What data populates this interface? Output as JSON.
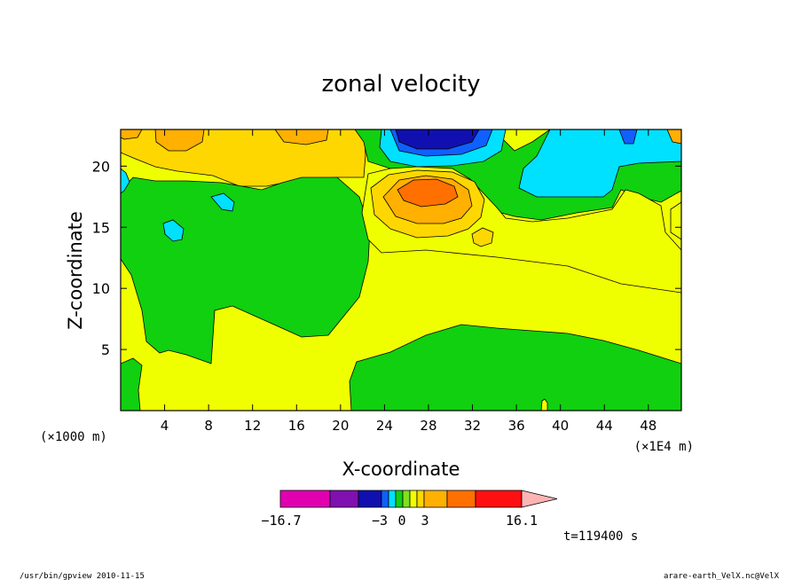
{
  "chart_data": {
    "type": "heatmap",
    "title": "zonal velocity",
    "xlabel": "X-coordinate",
    "ylabel": "Z-coordinate",
    "x_unit_left": "(×1000 m)",
    "x_unit_right": "(×1E4 m)",
    "xlim": [
      0,
      51
    ],
    "ylim": [
      0,
      23
    ],
    "x_ticks": [
      4,
      8,
      12,
      16,
      20,
      24,
      28,
      32,
      36,
      40,
      44,
      48
    ],
    "y_ticks": [
      5,
      10,
      15,
      20
    ],
    "colorbar": {
      "min_label": "−16.7",
      "mid_labels": [
        "−3",
        "0",
        "3"
      ],
      "max_label": "16.1",
      "colors": [
        "#e000b0",
        "#8010b0",
        "#1010b0",
        "#1060ff",
        "#00e0ff",
        "#10d010",
        "#80e020",
        "#f0ff00",
        "#ffd700",
        "#ffb000",
        "#ff7000",
        "#ff1010",
        "#ff8080",
        "#ffb4b4"
      ]
    },
    "time_label": "t=119400 s"
  },
  "footer": {
    "left": "/usr/bin/gpview  2010-11-15",
    "right": "arare-earth_VelX.nc@VelX"
  }
}
